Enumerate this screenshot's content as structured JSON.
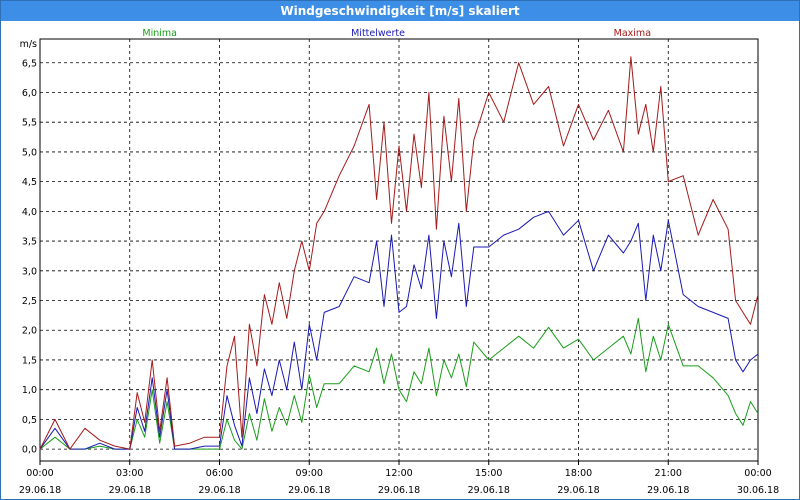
{
  "window": {
    "title": "Windgeschwindigkeit [m/s] skaliert"
  },
  "chart_data": {
    "type": "line",
    "title": "Windgeschwindigkeit [m/s] skaliert",
    "ylabel": "m/s",
    "ylim": [
      -0.2,
      6.9
    ],
    "xlim": [
      0,
      24
    ],
    "yticks": [
      0.0,
      0.5,
      1.0,
      1.5,
      2.0,
      2.5,
      3.0,
      3.5,
      4.0,
      4.5,
      5.0,
      5.5,
      6.0,
      6.5
    ],
    "ytick_labels": [
      "0,0",
      "0,5",
      "1,0",
      "1,5",
      "2,0",
      "2,5",
      "3,0",
      "3,5",
      "4,0",
      "4,5",
      "5,0",
      "5,5",
      "6,0",
      "6,5"
    ],
    "xticks": [
      {
        "x": 0,
        "time": "00:00",
        "date": "29.06.18"
      },
      {
        "x": 3,
        "time": "03:00",
        "date": "29.06.18"
      },
      {
        "x": 6,
        "time": "06:00",
        "date": "29.06.18"
      },
      {
        "x": 9,
        "time": "09:00",
        "date": "29.06.18"
      },
      {
        "x": 12,
        "time": "12:00",
        "date": "29.06.18"
      },
      {
        "x": 15,
        "time": "15:00",
        "date": "29.06.18"
      },
      {
        "x": 18,
        "time": "18:00",
        "date": "29.06.18"
      },
      {
        "x": 21,
        "time": "21:00",
        "date": "29.06.18"
      },
      {
        "x": 24,
        "time": "00:00",
        "date": "30.06.18"
      }
    ],
    "grid": true,
    "legend_placement": "top",
    "series": [
      {
        "name": "Minima",
        "color": "#1a9e1a",
        "x": [
          0,
          0.5,
          1,
          1.5,
          2,
          2.5,
          3,
          3.25,
          3.5,
          3.75,
          4,
          4.25,
          4.5,
          5,
          5.5,
          6,
          6.25,
          6.5,
          6.75,
          7,
          7.25,
          7.5,
          7.75,
          8,
          8.25,
          8.5,
          8.75,
          9,
          9.25,
          9.5,
          10,
          10.5,
          11,
          11.25,
          11.5,
          11.75,
          12,
          12.25,
          12.5,
          12.75,
          13,
          13.25,
          13.5,
          13.75,
          14,
          14.25,
          14.5,
          15,
          15.5,
          16,
          16.5,
          17,
          17.5,
          18,
          18.5,
          19,
          19.5,
          19.75,
          20,
          20.25,
          20.5,
          20.75,
          21,
          21.5,
          22,
          22.5,
          23,
          23.25,
          23.5,
          23.75,
          24
        ],
        "values": [
          0,
          0.2,
          0,
          0,
          0.05,
          0,
          0,
          0.5,
          0.2,
          1.0,
          0.1,
          0.8,
          0,
          0,
          0,
          0,
          0.5,
          0.15,
          0,
          0.6,
          0.15,
          0.85,
          0.3,
          0.7,
          0.4,
          0.9,
          0.45,
          1.25,
          0.7,
          1.1,
          1.1,
          1.4,
          1.3,
          1.7,
          1.1,
          1.6,
          1.0,
          0.8,
          1.3,
          1.1,
          1.7,
          0.9,
          1.5,
          1.2,
          1.6,
          1.05,
          1.8,
          1.5,
          1.7,
          1.9,
          1.7,
          2.05,
          1.7,
          1.85,
          1.5,
          1.7,
          1.9,
          1.6,
          2.2,
          1.3,
          1.9,
          1.5,
          2.1,
          1.4,
          1.4,
          1.2,
          0.9,
          0.6,
          0.4,
          0.8,
          0.6
        ]
      },
      {
        "name": "Mittelwerte",
        "color": "#1a1ab4",
        "x": [
          0,
          0.5,
          1,
          1.5,
          2,
          2.5,
          3,
          3.25,
          3.5,
          3.75,
          4,
          4.25,
          4.5,
          5,
          5.5,
          6,
          6.25,
          6.5,
          6.75,
          7,
          7.25,
          7.5,
          7.75,
          8,
          8.25,
          8.5,
          8.75,
          9,
          9.25,
          9.5,
          10,
          10.5,
          11,
          11.25,
          11.5,
          11.75,
          12,
          12.25,
          12.5,
          12.75,
          13,
          13.25,
          13.5,
          13.75,
          14,
          14.25,
          14.5,
          15,
          15.5,
          16,
          16.5,
          17,
          17.5,
          18,
          18.5,
          19,
          19.5,
          19.75,
          20,
          20.25,
          20.5,
          20.75,
          21,
          21.5,
          22,
          22.5,
          23,
          23.25,
          23.5,
          23.75,
          24
        ],
        "values": [
          0,
          0.35,
          0,
          0,
          0.1,
          0,
          0,
          0.7,
          0.3,
          1.2,
          0.2,
          1.0,
          0,
          0,
          0.05,
          0.05,
          0.9,
          0.4,
          0.05,
          1.2,
          0.6,
          1.35,
          0.9,
          1.5,
          1.0,
          1.8,
          1.0,
          2.1,
          1.5,
          2.3,
          2.4,
          2.9,
          2.8,
          3.5,
          2.4,
          3.6,
          2.3,
          2.4,
          3.1,
          2.7,
          3.6,
          2.2,
          3.5,
          2.9,
          3.8,
          2.4,
          3.4,
          3.4,
          3.6,
          3.7,
          3.9,
          4.0,
          3.6,
          3.85,
          3.0,
          3.6,
          3.3,
          3.5,
          3.8,
          2.5,
          3.6,
          3.0,
          3.85,
          2.6,
          2.4,
          2.3,
          2.2,
          1.5,
          1.3,
          1.5,
          1.6
        ]
      },
      {
        "name": "Maxima",
        "color": "#a51a1a",
        "x": [
          0,
          0.5,
          1,
          1.5,
          2,
          2.5,
          3,
          3.25,
          3.5,
          3.75,
          4,
          4.25,
          4.5,
          5,
          5.5,
          6,
          6.25,
          6.5,
          6.75,
          7,
          7.25,
          7.5,
          7.75,
          8,
          8.25,
          8.5,
          8.75,
          9,
          9.25,
          9.5,
          10,
          10.5,
          11,
          11.25,
          11.5,
          11.75,
          12,
          12.25,
          12.5,
          12.75,
          13,
          13.25,
          13.5,
          13.75,
          14,
          14.25,
          14.5,
          15,
          15.5,
          16,
          16.5,
          17,
          17.5,
          18,
          18.5,
          19,
          19.5,
          19.75,
          20,
          20.25,
          20.5,
          20.75,
          21,
          21.5,
          22,
          22.5,
          23,
          23.25,
          23.5,
          23.75,
          24
        ],
        "values": [
          0,
          0.5,
          0,
          0.35,
          0.15,
          0.05,
          0,
          0.95,
          0.45,
          1.5,
          0.3,
          1.2,
          0.05,
          0.1,
          0.2,
          0.2,
          1.4,
          1.9,
          0.2,
          2.1,
          1.4,
          2.6,
          2.1,
          2.8,
          2.2,
          3.0,
          3.5,
          3.0,
          3.8,
          4.0,
          4.6,
          5.1,
          5.8,
          4.2,
          5.5,
          3.8,
          5.1,
          4.0,
          5.3,
          4.4,
          6.0,
          3.7,
          5.6,
          4.5,
          5.9,
          4.0,
          5.2,
          6.0,
          5.5,
          6.5,
          5.8,
          6.1,
          5.1,
          5.8,
          5.2,
          5.7,
          5.0,
          6.6,
          5.3,
          5.8,
          5.0,
          6.1,
          4.5,
          4.6,
          3.6,
          4.2,
          3.7,
          2.5,
          2.3,
          2.1,
          2.6
        ]
      }
    ]
  }
}
